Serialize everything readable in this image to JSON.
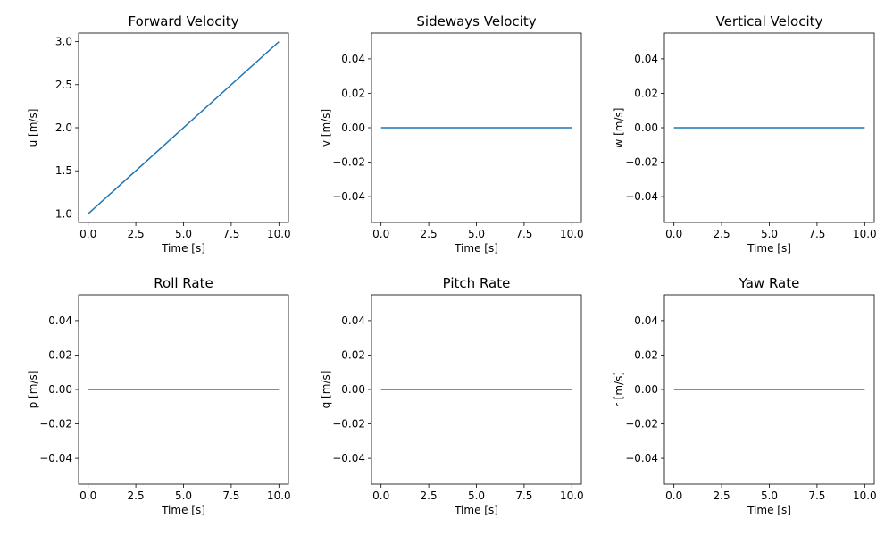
{
  "chart_data": [
    {
      "type": "line",
      "title": "Forward Velocity",
      "xlabel": "Time [s]",
      "ylabel": "u [m/s]",
      "xlim": [
        -0.5,
        10.5
      ],
      "ylim": [
        0.9,
        3.1
      ],
      "xticks": [
        0.0,
        2.5,
        5.0,
        7.5,
        10.0
      ],
      "xtick_labels": [
        "0.0",
        "2.5",
        "5.0",
        "7.5",
        "10.0"
      ],
      "yticks": [
        1.0,
        1.5,
        2.0,
        2.5,
        3.0
      ],
      "ytick_labels": [
        "1.0",
        "1.5",
        "2.0",
        "2.5",
        "3.0"
      ],
      "grid": false,
      "color": "#1f77b4",
      "series": [
        {
          "x": [
            0,
            10
          ],
          "y": [
            1.0,
            3.0
          ]
        }
      ]
    },
    {
      "type": "line",
      "title": "Sideways Velocity",
      "xlabel": "Time [s]",
      "ylabel": "v [m/s]",
      "xlim": [
        -0.5,
        10.5
      ],
      "ylim": [
        -0.055,
        0.055
      ],
      "xticks": [
        0.0,
        2.5,
        5.0,
        7.5,
        10.0
      ],
      "xtick_labels": [
        "0.0",
        "2.5",
        "5.0",
        "7.5",
        "10.0"
      ],
      "yticks": [
        -0.04,
        -0.02,
        0.0,
        0.02,
        0.04
      ],
      "ytick_labels": [
        "−0.04",
        "−0.02",
        "0.00",
        "0.02",
        "0.04"
      ],
      "grid": false,
      "color": "#1f77b4",
      "series": [
        {
          "x": [
            0,
            10
          ],
          "y": [
            0.0,
            0.0
          ]
        }
      ]
    },
    {
      "type": "line",
      "title": "Vertical Velocity",
      "xlabel": "Time [s]",
      "ylabel": "w [m/s]",
      "xlim": [
        -0.5,
        10.5
      ],
      "ylim": [
        -0.055,
        0.055
      ],
      "xticks": [
        0.0,
        2.5,
        5.0,
        7.5,
        10.0
      ],
      "xtick_labels": [
        "0.0",
        "2.5",
        "5.0",
        "7.5",
        "10.0"
      ],
      "yticks": [
        -0.04,
        -0.02,
        0.0,
        0.02,
        0.04
      ],
      "ytick_labels": [
        "−0.04",
        "−0.02",
        "0.00",
        "0.02",
        "0.04"
      ],
      "grid": false,
      "color": "#1f77b4",
      "series": [
        {
          "x": [
            0,
            10
          ],
          "y": [
            0.0,
            0.0
          ]
        }
      ]
    },
    {
      "type": "line",
      "title": "Roll Rate",
      "xlabel": "Time [s]",
      "ylabel": "p [m/s]",
      "xlim": [
        -0.5,
        10.5
      ],
      "ylim": [
        -0.055,
        0.055
      ],
      "xticks": [
        0.0,
        2.5,
        5.0,
        7.5,
        10.0
      ],
      "xtick_labels": [
        "0.0",
        "2.5",
        "5.0",
        "7.5",
        "10.0"
      ],
      "yticks": [
        -0.04,
        -0.02,
        0.0,
        0.02,
        0.04
      ],
      "ytick_labels": [
        "−0.04",
        "−0.02",
        "0.00",
        "0.02",
        "0.04"
      ],
      "grid": false,
      "color": "#1f77b4",
      "series": [
        {
          "x": [
            0,
            10
          ],
          "y": [
            0.0,
            0.0
          ]
        }
      ]
    },
    {
      "type": "line",
      "title": "Pitch Rate",
      "xlabel": "Time [s]",
      "ylabel": "q [m/s]",
      "xlim": [
        -0.5,
        10.5
      ],
      "ylim": [
        -0.055,
        0.055
      ],
      "xticks": [
        0.0,
        2.5,
        5.0,
        7.5,
        10.0
      ],
      "xtick_labels": [
        "0.0",
        "2.5",
        "5.0",
        "7.5",
        "10.0"
      ],
      "yticks": [
        -0.04,
        -0.02,
        0.0,
        0.02,
        0.04
      ],
      "ytick_labels": [
        "−0.04",
        "−0.02",
        "0.00",
        "0.02",
        "0.04"
      ],
      "grid": false,
      "color": "#1f77b4",
      "series": [
        {
          "x": [
            0,
            10
          ],
          "y": [
            0.0,
            0.0
          ]
        }
      ]
    },
    {
      "type": "line",
      "title": "Yaw Rate",
      "xlabel": "Time [s]",
      "ylabel": "r [m/s]",
      "xlim": [
        -0.5,
        10.5
      ],
      "ylim": [
        -0.055,
        0.055
      ],
      "xticks": [
        0.0,
        2.5,
        5.0,
        7.5,
        10.0
      ],
      "xtick_labels": [
        "0.0",
        "2.5",
        "5.0",
        "7.5",
        "10.0"
      ],
      "yticks": [
        -0.04,
        -0.02,
        0.0,
        0.02,
        0.04
      ],
      "ytick_labels": [
        "−0.04",
        "−0.02",
        "0.00",
        "0.02",
        "0.04"
      ],
      "grid": false,
      "color": "#1f77b4",
      "series": [
        {
          "x": [
            0,
            10
          ],
          "y": [
            0.0,
            0.0
          ]
        }
      ]
    }
  ]
}
